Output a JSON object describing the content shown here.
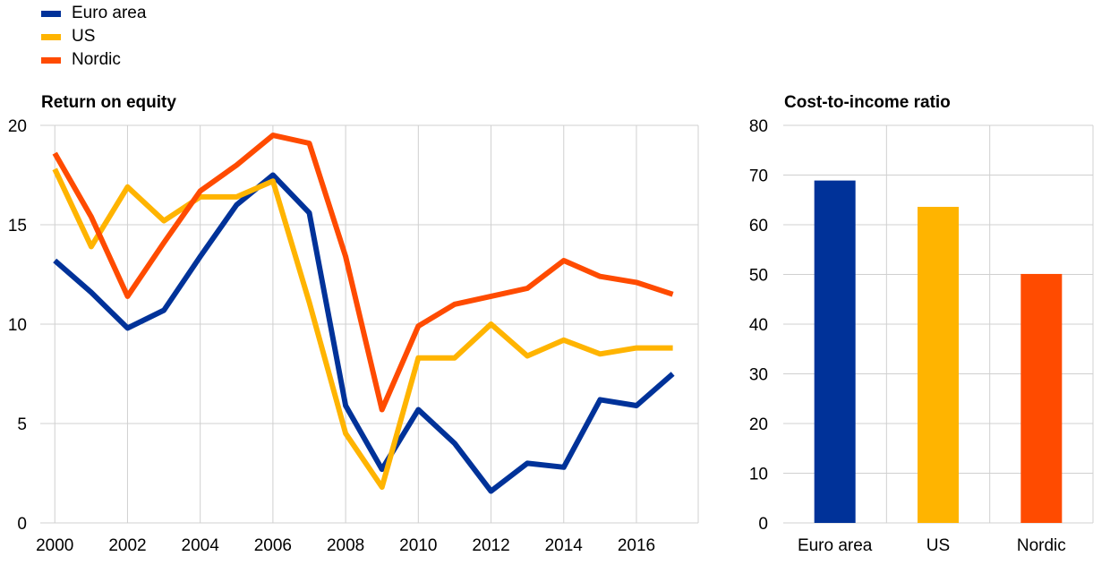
{
  "legend": {
    "items": [
      {
        "label": "Euro area",
        "color": "#003299"
      },
      {
        "label": "US",
        "color": "#FFB400"
      },
      {
        "label": "Nordic",
        "color": "#FF4B00"
      }
    ]
  },
  "chart_data": [
    {
      "type": "line",
      "title": "Return on equity",
      "xlabel": "",
      "ylabel": "",
      "x": [
        2000,
        2001,
        2002,
        2003,
        2004,
        2005,
        2006,
        2007,
        2008,
        2009,
        2010,
        2011,
        2012,
        2013,
        2014,
        2015,
        2016,
        2017
      ],
      "x_tick_labels": [
        "2000",
        "2002",
        "2004",
        "2006",
        "2008",
        "2010",
        "2012",
        "2014",
        "2016"
      ],
      "y_ticks": [
        0,
        5,
        10,
        15,
        20
      ],
      "ylim": [
        0,
        20
      ],
      "grid": true,
      "series": [
        {
          "name": "Euro area",
          "color": "#003299",
          "values": [
            13.2,
            11.6,
            9.8,
            10.7,
            13.4,
            16.0,
            17.5,
            15.6,
            5.9,
            2.7,
            5.7,
            4.0,
            1.6,
            3.0,
            2.8,
            6.2,
            5.9,
            7.5
          ]
        },
        {
          "name": "US",
          "color": "#FFB400",
          "values": [
            17.8,
            13.9,
            16.9,
            15.2,
            16.4,
            16.4,
            17.2,
            11.1,
            4.5,
            1.8,
            8.3,
            8.3,
            10.0,
            8.4,
            9.2,
            8.5,
            8.8,
            8.8
          ]
        },
        {
          "name": "Nordic",
          "color": "#FF4B00",
          "values": [
            18.6,
            15.4,
            11.4,
            14.1,
            16.7,
            18.0,
            19.5,
            19.1,
            13.4,
            5.7,
            9.9,
            11.0,
            11.4,
            11.8,
            13.2,
            12.4,
            12.1,
            11.5
          ]
        }
      ]
    },
    {
      "type": "bar",
      "title": "Cost-to-income ratio",
      "xlabel": "",
      "ylabel": "",
      "categories": [
        "Euro area",
        "US",
        "Nordic"
      ],
      "values": [
        68.9,
        63.6,
        50.1
      ],
      "colors": [
        "#003299",
        "#FFB400",
        "#FF4B00"
      ],
      "y_ticks": [
        0,
        10,
        20,
        30,
        40,
        50,
        60,
        70,
        80
      ],
      "ylim": [
        0,
        80
      ],
      "grid": true
    }
  ]
}
